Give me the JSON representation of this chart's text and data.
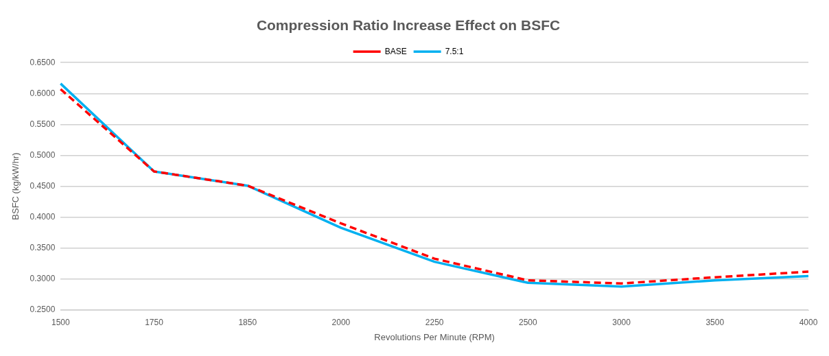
{
  "chart_data": {
    "type": "line",
    "title": "Compression Ratio Increase Effect on BSFC",
    "xlabel": "Revolutions Per Minute (RPM)",
    "ylabel": "BSFC (kg/kW/hr)",
    "categories": [
      "1500",
      "1750",
      "1850",
      "2000",
      "2250",
      "2500",
      "3000",
      "3500",
      "4000"
    ],
    "series": [
      {
        "name": "BASE",
        "color": "#ff0000",
        "line_style": "dashed",
        "values": [
          0.607,
          0.474,
          0.451,
          0.39,
          0.333,
          0.298,
          0.293,
          0.303,
          0.312
        ]
      },
      {
        "name": "7.5:1",
        "color": "#00b0f0",
        "line_style": "solid",
        "values": [
          0.616,
          0.474,
          0.451,
          0.383,
          0.328,
          0.294,
          0.288,
          0.298,
          0.305
        ]
      }
    ],
    "ylim": [
      0.25,
      0.65
    ],
    "yticks": [
      {
        "value": 0.25,
        "label": "0.2500"
      },
      {
        "value": 0.3,
        "label": "0.3000"
      },
      {
        "value": 0.35,
        "label": "0.3500"
      },
      {
        "value": 0.4,
        "label": "0.4000"
      },
      {
        "value": 0.45,
        "label": "0.4500"
      },
      {
        "value": 0.5,
        "label": "0.5000"
      },
      {
        "value": 0.55,
        "label": "0.5500"
      },
      {
        "value": 0.6,
        "label": "0.6000"
      },
      {
        "value": 0.65,
        "label": "0.6500"
      }
    ],
    "grid": "y",
    "legend": "top",
    "marker": "none"
  }
}
